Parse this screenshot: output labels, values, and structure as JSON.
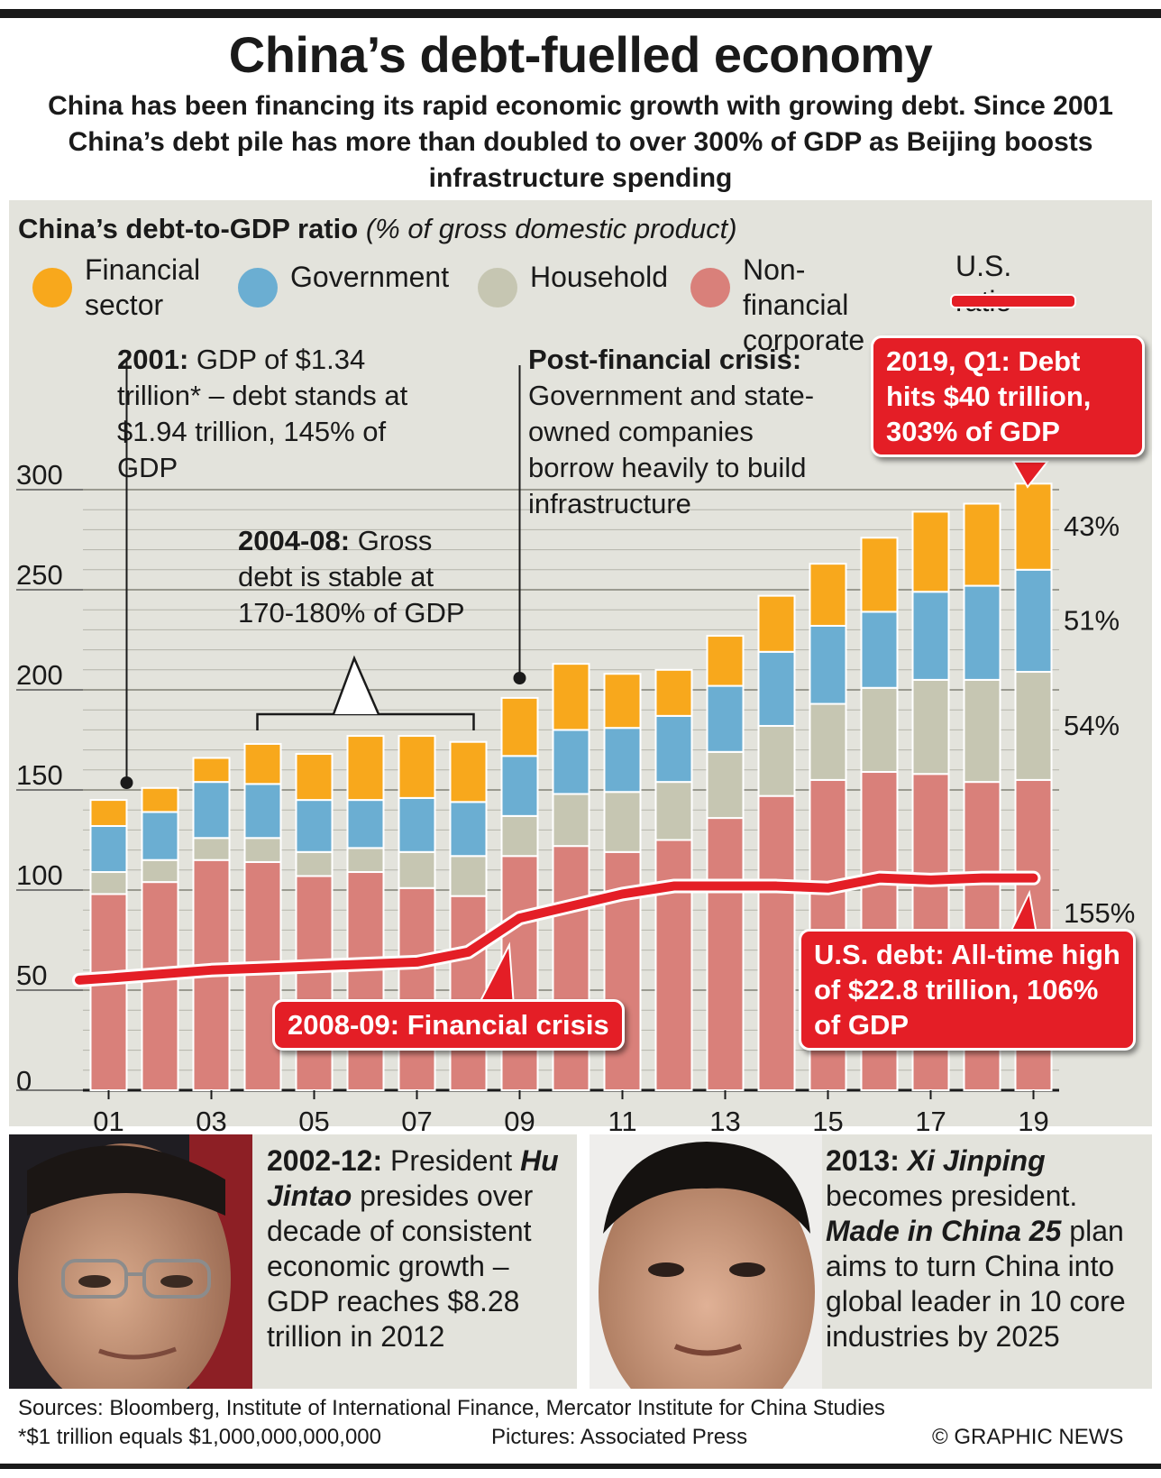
{
  "title": "China’s debt-fuelled economy",
  "subtitle": "China has been financing its rapid economic growth with growing debt. Since 2001 China’s debt pile has more than doubled to over 300% of GDP as Beijing boosts infrastructure spending",
  "chart_heading": {
    "main": "China’s debt-to-GDP ratio",
    "unit": "(% of gross domestic product)"
  },
  "legend": [
    {
      "label": "Financial\nsector",
      "color": "#f8a81c"
    },
    {
      "label": "Government",
      "color": "#6baed2"
    },
    {
      "label": "Household",
      "color": "#c6c6b2"
    },
    {
      "label": "Non-financial\ncorporate",
      "color": "#d9807a"
    },
    {
      "label": "U.S. ratio",
      "color": "#e41e26"
    }
  ],
  "chart_data": {
    "type": "bar",
    "stacked": true,
    "x_tick_labels": [
      "01",
      "03",
      "05",
      "07",
      "09",
      "11",
      "13",
      "15",
      "17",
      "19"
    ],
    "categories": [
      "2001",
      "2002",
      "2003",
      "2004",
      "2005",
      "2006",
      "2007",
      "2008",
      "2009",
      "2010",
      "2011",
      "2012",
      "2013",
      "2014",
      "2015",
      "2016",
      "2017",
      "2018",
      "2019"
    ],
    "ylim": [
      0,
      300
    ],
    "yticks": [
      0,
      50,
      100,
      150,
      200,
      250,
      300
    ],
    "series": [
      {
        "name": "Non-financial corporate",
        "color": "#d9807a",
        "values": [
          98,
          104,
          115,
          114,
          107,
          109,
          101,
          97,
          117,
          122,
          119,
          125,
          136,
          147,
          155,
          159,
          158,
          154,
          155
        ]
      },
      {
        "name": "Household",
        "color": "#c6c6b2",
        "values": [
          11,
          11,
          11,
          12,
          12,
          12,
          18,
          20,
          20,
          26,
          30,
          29,
          33,
          35,
          38,
          42,
          47,
          51,
          54
        ]
      },
      {
        "name": "Government",
        "color": "#6baed2",
        "values": [
          23,
          24,
          28,
          27,
          26,
          24,
          27,
          27,
          30,
          32,
          32,
          33,
          33,
          37,
          39,
          38,
          44,
          47,
          51
        ]
      },
      {
        "name": "Financial sector",
        "color": "#f8a81c",
        "values": [
          13,
          12,
          12,
          20,
          23,
          32,
          31,
          30,
          29,
          33,
          27,
          23,
          25,
          28,
          31,
          37,
          40,
          41,
          43
        ]
      }
    ],
    "us_ratio": {
      "name": "U.S. ratio",
      "color": "#e41e26",
      "values": [
        56,
        58,
        60,
        61,
        62,
        63,
        64,
        69,
        86,
        92,
        98,
        102,
        102,
        102,
        101,
        106,
        105,
        106,
        106
      ]
    },
    "right_labels": [
      "43%",
      "51%",
      "54%",
      "155%"
    ]
  },
  "annotations": {
    "a2001_bold": "2001:",
    "a2001_text": " GDP of $1.34 trillion* – debt stands at $1.94 trillion, 145% of GDP",
    "a0408_bold": "2004-08:",
    "a0408_text": " Gross debt is stable at 170-180% of GDP",
    "post_bold": "Post-financial crisis:",
    "post_text": " Government and state-owned companies borrow heavily to build infrastructure",
    "callout_2019": "2019, Q1: Debt hits $40 trillion, 303% of GDP",
    "callout_crisis": "2008-09: Financial crisis",
    "callout_us": "U.S. debt: All-time high of $22.8 trillion, 106% of GDP"
  },
  "captions": {
    "hu_bold": "2002-12:",
    "hu_t1": " President ",
    "hu_name": "Hu Jintao",
    "hu_t2": " presides over decade of consistent economic growth – GDP reaches $8.28 trillion in 2012",
    "xi_bold": "2013:",
    "xi_name": "Xi Jinping",
    "xi_t1": " becomes president. ",
    "xi_plan": "Made in China 25",
    "xi_t2": " plan aims to turn China into global leader in 10 core industries by 2025"
  },
  "footer": {
    "sources": "Sources: Bloomberg, Institute of International Finance, Mercator Institute for China Studies",
    "note": "*$1 trillion equals $1,000,000,000,000",
    "pictures": "Pictures: Associated Press",
    "credit": "© GRAPHIC NEWS"
  }
}
